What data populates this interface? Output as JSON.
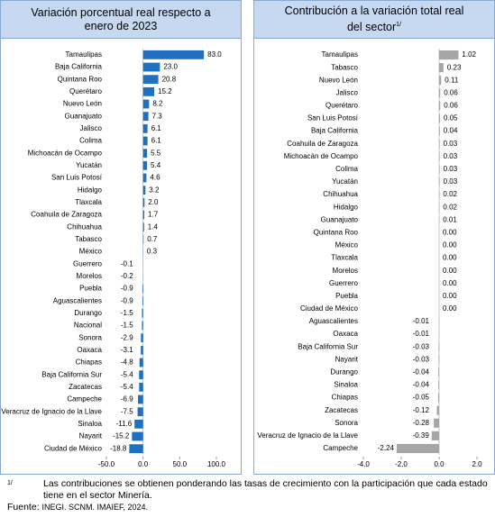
{
  "chart_data": [
    {
      "type": "bar",
      "orientation": "horizontal",
      "title": "Variación porcentual real respecto a enero de 2023",
      "color": "#1f70c1",
      "categories": [
        "Tamaulipas",
        "Baja California",
        "Quintana Roo",
        "Querétaro",
        "Nuevo León",
        "Guanajuato",
        "Jalisco",
        "Colima",
        "Michoacán de Ocampo",
        "Yucatán",
        "San Luis Potosí",
        "Hidalgo",
        "Tlaxcala",
        "Coahuila de Zaragoza",
        "Chihuahua",
        "Tabasco",
        "México",
        "Guerrero",
        "Morelos",
        "Puebla",
        "Aguascalientes",
        "Durango",
        "Nacional",
        "Sonora",
        "Oaxaca",
        "Chiapas",
        "Baja California Sur",
        "Zacatecas",
        "Campeche",
        "Veracruz de Ignacio de la Llave",
        "Sinaloa",
        "Nayarit",
        "Ciudad de México"
      ],
      "values": [
        83.0,
        23.0,
        20.8,
        15.2,
        8.2,
        7.3,
        6.1,
        6.1,
        5.5,
        5.4,
        4.6,
        3.2,
        2.0,
        1.7,
        1.4,
        0.7,
        0.3,
        -0.1,
        -0.2,
        -0.9,
        -0.9,
        -1.5,
        -1.5,
        -2.9,
        -3.1,
        -4.8,
        -5.4,
        -5.4,
        -6.9,
        -7.5,
        -11.6,
        -15.2,
        -18.8
      ],
      "value_labels": [
        "83.0",
        "23.0",
        "20.8",
        "15.2",
        "8.2",
        "7.3",
        "6.1",
        "6.1",
        "5.5",
        "5.4",
        "4.6",
        "3.2",
        "2.0",
        "1.7",
        "1.4",
        "0.7",
        "0.3",
        "-0.1",
        "-0.2",
        "-0.9",
        "-0.9",
        "-1.5",
        "-1.5",
        "-2.9",
        "-3.1",
        "-4.8",
        "-5.4",
        "-5.4",
        "-6.9",
        "-7.5",
        "-11.6",
        "-15.2",
        "-18.8"
      ],
      "xlim": [
        -50,
        100
      ],
      "xticks": [
        {
          "value": -50,
          "label": "-50.0"
        },
        {
          "value": 0,
          "label": "0.0"
        },
        {
          "value": 50,
          "label": "50.0"
        },
        {
          "value": 100,
          "label": "100.0"
        }
      ]
    },
    {
      "type": "bar",
      "orientation": "horizontal",
      "title": "Contribución a la variación total real del sector",
      "title_note": "1/",
      "color": "#a6a6a6",
      "categories": [
        "Tamaulipas",
        "Tabasco",
        "Nuevo León",
        "Jalisco",
        "Querétaro",
        "San Luis Potosí",
        "Baja California",
        "Coahuila de Zaragoza",
        "Michoacán de Ocampo",
        "Colima",
        "Yucatán",
        "Chihuahua",
        "Hidalgo",
        "Guanajuato",
        "Quintana Roo",
        "México",
        "Tlaxcala",
        "Morelos",
        "Guerrero",
        "Puebla",
        "Ciudad de México",
        "Aguascalientes",
        "Oaxaca",
        "Baja California Sur",
        "Nayarit",
        "Durango",
        "Sinaloa",
        "Chiapas",
        "Zacatecas",
        "Sonora",
        "Veracruz de Ignacio de la Llave",
        "Campeche"
      ],
      "values": [
        1.02,
        0.23,
        0.11,
        0.06,
        0.06,
        0.05,
        0.04,
        0.03,
        0.03,
        0.03,
        0.03,
        0.02,
        0.02,
        0.01,
        0.0,
        0.0,
        0.0,
        0.0,
        0.0,
        0.0,
        0.0,
        -0.01,
        -0.01,
        -0.03,
        -0.03,
        -0.04,
        -0.04,
        -0.05,
        -0.12,
        -0.28,
        -0.39,
        -2.24
      ],
      "value_labels": [
        "1.02",
        "0.23",
        "0.11",
        "0.06",
        "0.06",
        "0.05",
        "0.04",
        "0.03",
        "0.03",
        "0.03",
        "0.03",
        "0.02",
        "0.02",
        "0.01",
        "0.00",
        "0.00",
        "0.00",
        "0.00",
        "0.00",
        "0.00",
        "0.00",
        "-0.01",
        "-0.01",
        "-0.03",
        "-0.03",
        "-0.04",
        "-0.04",
        "-0.05",
        "-0.12",
        "-0.28",
        "-0.39",
        "-2.24"
      ],
      "xlim": [
        -4,
        2
      ],
      "xticks": [
        {
          "value": -4,
          "label": "-4.0"
        },
        {
          "value": -2,
          "label": "-2.0"
        },
        {
          "value": 0,
          "label": "0.0"
        },
        {
          "value": 2,
          "label": "2.0"
        }
      ]
    }
  ],
  "footnote": {
    "marker": "1/",
    "text": "Las contribuciones se obtienen ponderando las tasas de crecimiento con la participación que cada estado tiene en el sector Minería."
  },
  "source": {
    "label": "Fuente:",
    "text": "INEGI. SCNM. IMAIEF, 2024."
  }
}
